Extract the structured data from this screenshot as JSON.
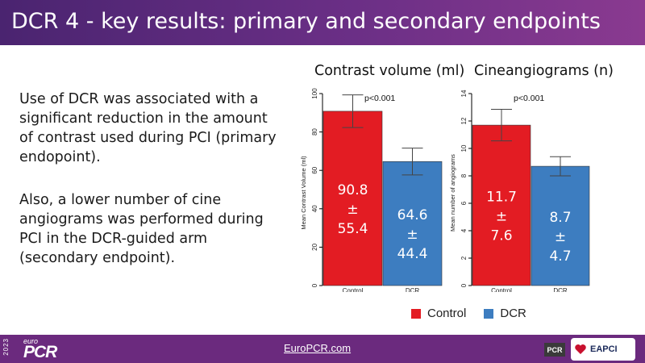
{
  "slide": {
    "title": "DCR 4 - key results: primary and secondary endpoints",
    "paragraph1": "Use of DCR was associated with a significant reduction in the amount of contrast used during PCI (primary endopoint).",
    "paragraph2": "Also, a lower number of cine angiograms was performed during PCI in the DCR-guided arm (secondary endpoint)."
  },
  "footer": {
    "link": "EuroPCR.com",
    "year": "2023",
    "brand_small": "euro",
    "brand_big": "PCR",
    "logo_pcr": "PCR",
    "logo_eapci": "EAPCI"
  },
  "colors": {
    "control": "#e31c23",
    "dcr": "#3d7dc0",
    "header": "#5a2a7c"
  },
  "chart_data": [
    {
      "type": "bar",
      "title": "Contrast volume (ml)",
      "ylabel": "Mean Contrast Volume (ml)",
      "categories": [
        "Control",
        "DCR"
      ],
      "values": [
        90.8,
        64.6
      ],
      "errors": [
        8.5,
        7
      ],
      "data_labels": [
        [
          "90.8",
          "±",
          "55.4"
        ],
        [
          "64.6",
          "±",
          "44.4"
        ]
      ],
      "annotation": "p<0.001",
      "ylim": [
        0,
        100
      ],
      "yticks": [
        0,
        20,
        40,
        60,
        80,
        100
      ]
    },
    {
      "type": "bar",
      "title": "Cineangiograms (n)",
      "ylabel": "Mean number of angiograms",
      "categories": [
        "Control",
        "DCR"
      ],
      "values": [
        11.7,
        8.7
      ],
      "errors": [
        1.15,
        0.7
      ],
      "data_labels": [
        [
          "11.7",
          "±",
          "7.6"
        ],
        [
          "8.7",
          "±",
          "4.7"
        ]
      ],
      "annotation": "p<0.001",
      "ylim": [
        0,
        14
      ],
      "yticks": [
        0,
        2,
        4,
        6,
        8,
        10,
        12,
        14
      ]
    }
  ],
  "legend": [
    {
      "label": "Control",
      "color": "#e31c23"
    },
    {
      "label": "DCR",
      "color": "#3d7dc0"
    }
  ]
}
